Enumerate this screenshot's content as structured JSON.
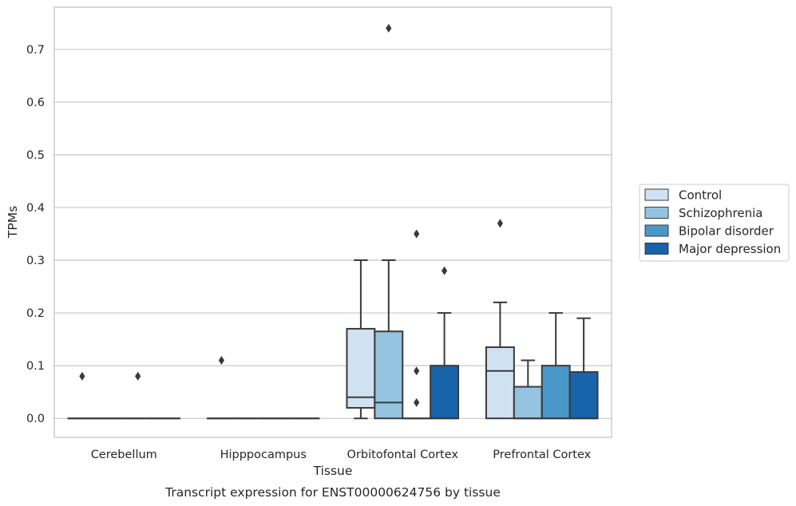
{
  "chart_data": {
    "type": "box",
    "title": "",
    "caption": "Transcript expression for ENST00000624756 by tissue",
    "xlabel": "Tissue",
    "ylabel": "TPMs",
    "ylim": [
      -0.036,
      0.78
    ],
    "yticks": [
      0.0,
      0.1,
      0.2,
      0.3,
      0.4,
      0.5,
      0.6,
      0.7
    ],
    "ytick_labels": [
      "0.0",
      "0.1",
      "0.2",
      "0.3",
      "0.4",
      "0.5",
      "0.6",
      "0.7"
    ],
    "grid": "horizontal",
    "legend_position": "right",
    "categories": [
      "Cerebellum",
      "Hipppocampus",
      "Orbitofontal Cortex",
      "Prefrontal Cortex"
    ],
    "series": [
      {
        "name": "Control",
        "color": "#d0e1f2",
        "boxes": [
          {
            "whisker_low": 0.0,
            "q1": 0.0,
            "median": 0.0,
            "q3": 0.0,
            "whisker_high": 0.0,
            "outliers": [
              0.08
            ]
          },
          {
            "whisker_low": 0.0,
            "q1": 0.0,
            "median": 0.0,
            "q3": 0.0,
            "whisker_high": 0.0,
            "outliers": [
              0.11
            ]
          },
          {
            "whisker_low": 0.0,
            "q1": 0.02,
            "median": 0.04,
            "q3": 0.17,
            "whisker_high": 0.3,
            "outliers": []
          },
          {
            "whisker_low": 0.0,
            "q1": 0.0,
            "median": 0.09,
            "q3": 0.135,
            "whisker_high": 0.22,
            "outliers": [
              0.37
            ]
          }
        ]
      },
      {
        "name": "Schizophrenia",
        "color": "#94c4df",
        "boxes": [
          {
            "whisker_low": 0.0,
            "q1": 0.0,
            "median": 0.0,
            "q3": 0.0,
            "whisker_high": 0.0,
            "outliers": []
          },
          {
            "whisker_low": 0.0,
            "q1": 0.0,
            "median": 0.0,
            "q3": 0.0,
            "whisker_high": 0.0,
            "outliers": []
          },
          {
            "whisker_low": 0.0,
            "q1": 0.0,
            "median": 0.03,
            "q3": 0.165,
            "whisker_high": 0.3,
            "outliers": [
              0.74
            ]
          },
          {
            "whisker_low": 0.0,
            "q1": 0.0,
            "median": 0.0,
            "q3": 0.06,
            "whisker_high": 0.11,
            "outliers": []
          }
        ]
      },
      {
        "name": "Bipolar disorder",
        "color": "#4a98c9",
        "boxes": [
          {
            "whisker_low": 0.0,
            "q1": 0.0,
            "median": 0.0,
            "q3": 0.0,
            "whisker_high": 0.0,
            "outliers": [
              0.08
            ]
          },
          {
            "whisker_low": 0.0,
            "q1": 0.0,
            "median": 0.0,
            "q3": 0.0,
            "whisker_high": 0.0,
            "outliers": []
          },
          {
            "whisker_low": 0.0,
            "q1": 0.0,
            "median": 0.0,
            "q3": 0.0,
            "whisker_high": 0.0,
            "outliers": [
              0.09,
              0.35,
              0.03
            ]
          },
          {
            "whisker_low": 0.0,
            "q1": 0.0,
            "median": 0.0,
            "q3": 0.1,
            "whisker_high": 0.2,
            "outliers": []
          }
        ]
      },
      {
        "name": "Major depression",
        "color": "#1764ab",
        "boxes": [
          {
            "whisker_low": 0.0,
            "q1": 0.0,
            "median": 0.0,
            "q3": 0.0,
            "whisker_high": 0.0,
            "outliers": []
          },
          {
            "whisker_low": 0.0,
            "q1": 0.0,
            "median": 0.0,
            "q3": 0.0,
            "whisker_high": 0.0,
            "outliers": []
          },
          {
            "whisker_low": 0.0,
            "q1": 0.0,
            "median": 0.0,
            "q3": 0.1,
            "whisker_high": 0.2,
            "outliers": [
              0.28
            ]
          },
          {
            "whisker_low": 0.0,
            "q1": 0.0,
            "median": 0.0,
            "q3": 0.088,
            "whisker_high": 0.19,
            "outliers": []
          }
        ]
      }
    ]
  },
  "colors": {
    "grid": "#cccccc",
    "frame": "#cccccc",
    "box_edge": "#3a3a3a"
  }
}
